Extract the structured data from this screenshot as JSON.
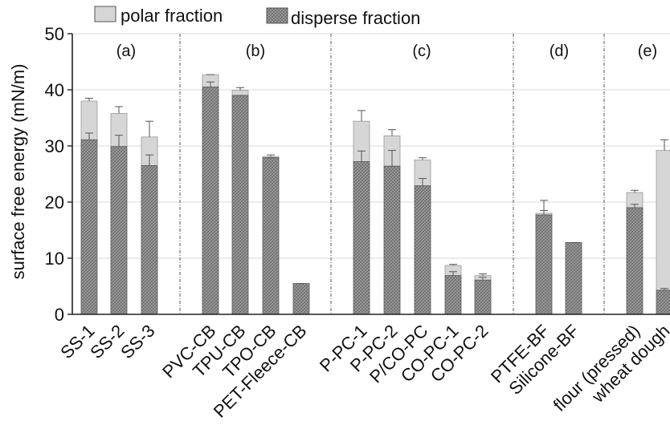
{
  "chart_data": {
    "type": "bar",
    "stacked": true,
    "title": "",
    "xlabel": "",
    "ylabel": "surface free energy (mN/m)",
    "ylim": [
      0,
      50
    ],
    "yticks": [
      0,
      10,
      20,
      30,
      40,
      50
    ],
    "grid": true,
    "legend_position": "top-left",
    "series": [
      {
        "name": "polar fraction",
        "color": "#d6d6d6",
        "pattern": "none"
      },
      {
        "name": "disperse fraction",
        "color": "#8f8f8f",
        "pattern": "crosshatch"
      }
    ],
    "groups": [
      {
        "label": "(a)",
        "categories": [
          "SS-1",
          "SS-2",
          "SS-3"
        ]
      },
      {
        "label": "(b)",
        "categories": [
          "PVC-CB",
          "TPU-CB",
          "TPO-CB",
          "PET-Fleece-CB"
        ]
      },
      {
        "label": "(c)",
        "categories": [
          "P-PC-1",
          "P-PC-2",
          "P/CO-PC",
          "CO-PC-1",
          "CO-PC-2"
        ]
      },
      {
        "label": "(d)",
        "categories": [
          "PTFE-BF",
          "Silicone-BF"
        ]
      },
      {
        "label": "(e)",
        "categories": [
          "flour (pressed)",
          "wheat dough"
        ]
      }
    ],
    "bars": [
      {
        "category": "SS-1",
        "disperse": 31.1,
        "disperse_err": 1.2,
        "total": 38.0,
        "total_err": 0.5
      },
      {
        "category": "SS-2",
        "disperse": 29.9,
        "disperse_err": 2.0,
        "total": 35.8,
        "total_err": 1.2
      },
      {
        "category": "SS-3",
        "disperse": 26.5,
        "disperse_err": 1.9,
        "total": 31.6,
        "total_err": 2.8
      },
      {
        "category": "PVC-CB",
        "disperse": 40.5,
        "disperse_err": 0.9,
        "total": 42.7,
        "total_err": 0.0
      },
      {
        "category": "TPU-CB",
        "disperse": 39.0,
        "disperse_err": 0.0,
        "total": 39.9,
        "total_err": 0.5
      },
      {
        "category": "TPO-CB",
        "disperse": 27.9,
        "disperse_err": 0.0,
        "total": 28.1,
        "total_err": 0.3
      },
      {
        "category": "PET-Fleece-CB",
        "disperse": 5.5,
        "disperse_err": 0.6,
        "total": 5.5,
        "total_err": 0.0
      },
      {
        "category": "P-PC-1",
        "disperse": 27.2,
        "disperse_err": 1.9,
        "total": 34.4,
        "total_err": 1.9
      },
      {
        "category": "P-PC-2",
        "disperse": 26.4,
        "disperse_err": 2.8,
        "total": 31.8,
        "total_err": 1.1
      },
      {
        "category": "P/CO-PC",
        "disperse": 22.9,
        "disperse_err": 1.3,
        "total": 27.5,
        "total_err": 0.4
      },
      {
        "category": "CO-PC-1",
        "disperse": 6.9,
        "disperse_err": 0.7,
        "total": 8.7,
        "total_err": 0.2
      },
      {
        "category": "CO-PC-2",
        "disperse": 6.1,
        "disperse_err": 0.5,
        "total": 6.9,
        "total_err": 0.3
      },
      {
        "category": "PTFE-BF",
        "disperse": 17.7,
        "disperse_err": 0.8,
        "total": 18.0,
        "total_err": 2.3
      },
      {
        "category": "Silicone-BF",
        "disperse": 12.8,
        "disperse_err": 1.9,
        "total": 12.8,
        "total_err": 0.0
      },
      {
        "category": "flour (pressed)",
        "disperse": 19.0,
        "disperse_err": 0.6,
        "total": 21.7,
        "total_err": 0.4
      },
      {
        "category": "wheat dough",
        "disperse": 4.3,
        "disperse_err": 0.3,
        "total": 29.2,
        "total_err": 1.9
      }
    ]
  }
}
